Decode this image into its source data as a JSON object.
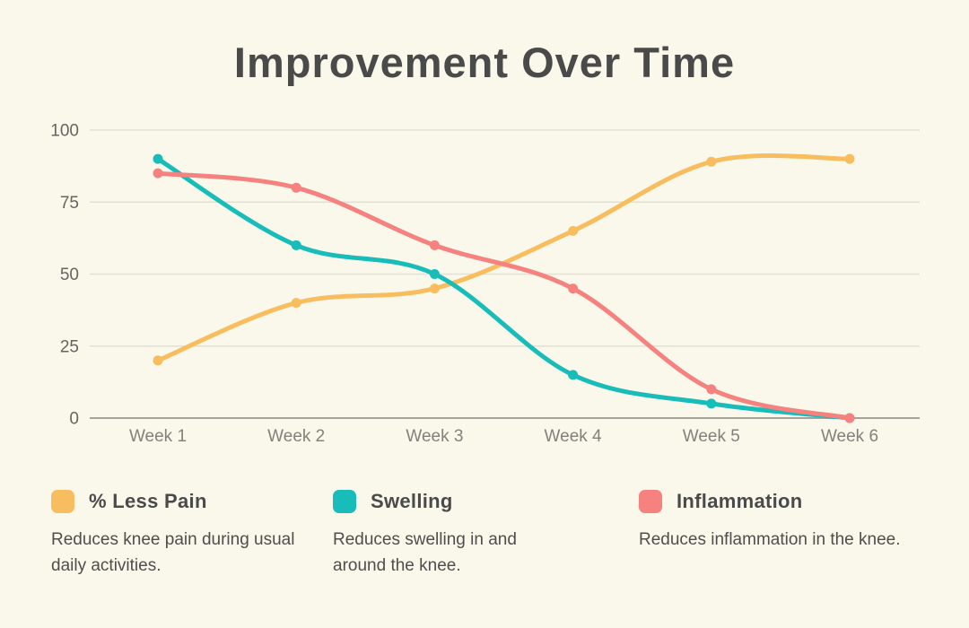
{
  "page": {
    "background_color": "#FAF8EB"
  },
  "title": "Improvement Over Time",
  "chart_data": {
    "type": "line",
    "title": "Improvement Over Time",
    "categories": [
      "Week 1",
      "Week 2",
      "Week 3",
      "Week 4",
      "Week 5",
      "Week 6"
    ],
    "series": [
      {
        "id": "less-pain",
        "name": "% Less Pain",
        "color": "#F7BD5E",
        "values": [
          20,
          40,
          45,
          65,
          89,
          90
        ]
      },
      {
        "id": "swelling",
        "name": "Swelling",
        "color": "#18BCB8",
        "values": [
          90,
          60,
          50,
          15,
          5,
          0
        ]
      },
      {
        "id": "inflammation",
        "name": "Inflammation",
        "color": "#F5827F",
        "values": [
          85,
          80,
          60,
          45,
          10,
          0
        ]
      }
    ],
    "xlabel": "",
    "ylabel": "",
    "ylim": [
      0,
      100
    ],
    "yticks": [
      0,
      25,
      50,
      75,
      100
    ],
    "grid": true,
    "grid_color": "#E2E0D2",
    "axis_line_color": "#A5A49C",
    "ytick_color": "#666460",
    "xtick_color": "#82817B",
    "line_width": 5,
    "point_radius": 5.5,
    "legend_position": "bottom",
    "smoothing": "catmull-rom"
  },
  "legend": {
    "items": [
      {
        "label": "% Less Pain",
        "color": "#F7BD5E",
        "description": "Reduces knee pain during usual daily activities."
      },
      {
        "label": "Swelling",
        "color": "#18BCB8",
        "description": "Reduces swelling in and around the knee."
      },
      {
        "label": "Inflammation",
        "color": "#F5827F",
        "description": "Reduces inflammation in the knee."
      }
    ]
  }
}
